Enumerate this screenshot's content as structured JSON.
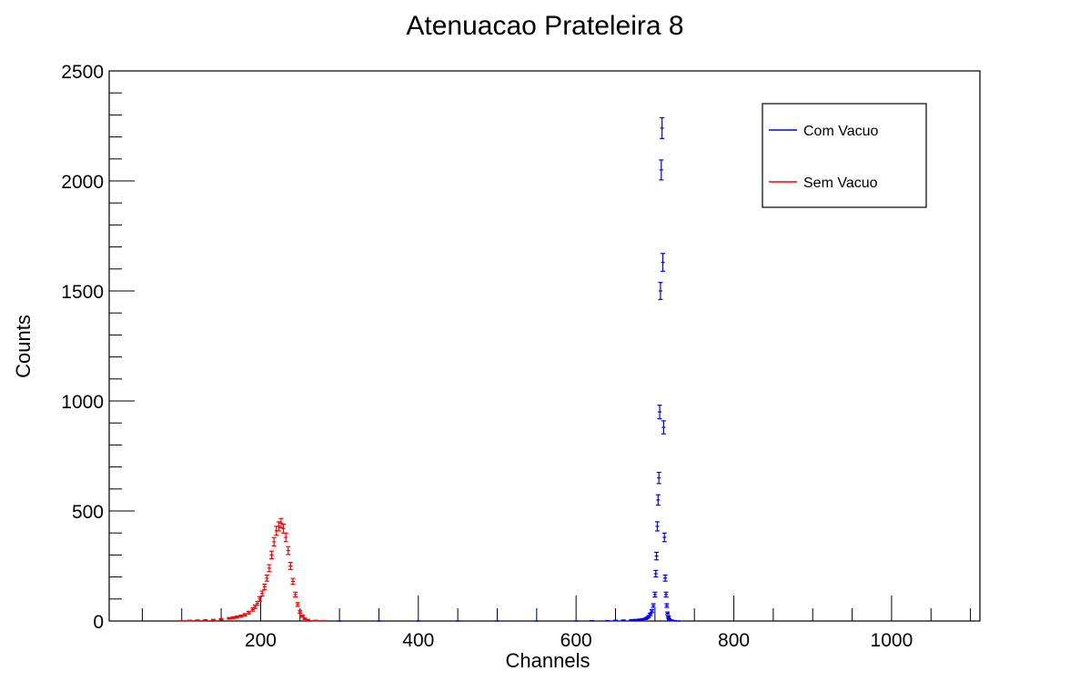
{
  "chart_data": {
    "type": "scatter",
    "title": "Atenuacao Prateleira 8",
    "xlabel": "Channels",
    "ylabel": "Counts",
    "xlim": [
      8,
      1112
    ],
    "ylim": [
      0,
      2500
    ],
    "x_ticks": [
      200,
      400,
      600,
      800,
      1000
    ],
    "y_ticks": [
      0,
      500,
      1000,
      1500,
      2000,
      2500
    ],
    "legend_position": "top-right",
    "series": [
      {
        "name": "Com Vacuo",
        "color": "#0000ff",
        "x": [
          300,
          350,
          400,
          450,
          500,
          550,
          600,
          620,
          640,
          650,
          660,
          670,
          675,
          680,
          684,
          688,
          690,
          692,
          694,
          696,
          698,
          700,
          701,
          702,
          703,
          704,
          705,
          706,
          707,
          708,
          709,
          710,
          711,
          712,
          713,
          714,
          715,
          716,
          717,
          718,
          720,
          722,
          725,
          730
        ],
        "y": [
          0,
          0,
          0,
          0,
          0,
          0,
          0,
          1,
          1,
          2,
          3,
          4,
          5,
          6,
          8,
          10,
          14,
          20,
          30,
          45,
          70,
          120,
          215,
          295,
          430,
          550,
          650,
          950,
          1500,
          2050,
          2240,
          1630,
          880,
          380,
          195,
          120,
          70,
          35,
          18,
          8,
          4,
          2,
          1,
          0
        ]
      },
      {
        "name": "Sem Vacuo",
        "color": "#ff0000",
        "x": [
          100,
          110,
          120,
          130,
          140,
          150,
          160,
          165,
          170,
          175,
          180,
          185,
          190,
          193,
          196,
          199,
          202,
          205,
          208,
          211,
          214,
          217,
          220,
          223,
          226,
          229,
          232,
          235,
          238,
          241,
          244,
          247,
          250,
          253,
          256,
          260,
          270,
          280
        ],
        "y": [
          1,
          2,
          3,
          4,
          5,
          8,
          12,
          15,
          18,
          22,
          28,
          38,
          52,
          65,
          80,
          100,
          125,
          155,
          195,
          240,
          300,
          360,
          410,
          430,
          445,
          420,
          380,
          320,
          250,
          180,
          120,
          75,
          42,
          22,
          10,
          5,
          2,
          1
        ]
      }
    ]
  }
}
